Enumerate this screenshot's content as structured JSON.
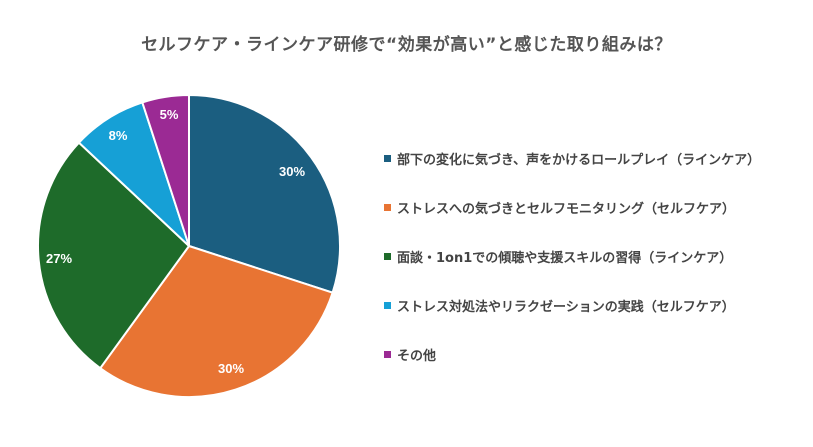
{
  "chart_data": {
    "type": "pie",
    "title": "セルフケア・ラインケア研修で“効果が高い”と感じた取り組みは？",
    "categories": [
      "部下の変化に気づき、声をかけるロールプレイ（ラインケア）",
      "ストレスへの気づきとセルフモニタリング（セルフケア）",
      "面談・1on1での傾聴や支援スキルの習得（ラインケア）",
      "ストレス対処法やリラクゼーションの実践（セルフケア）",
      "その他"
    ],
    "values": [
      30,
      30,
      27,
      8,
      5
    ],
    "labels": [
      "30%",
      "30%",
      "27%",
      "8%",
      "5%"
    ],
    "colors": [
      "#1b5e80",
      "#e87433",
      "#1e6b2a",
      "#16a0d6",
      "#9b2a94"
    ],
    "legend_position": "right",
    "start_angle": "12 o'clock, clockwise"
  },
  "title": "セルフケア・ラインケア研修で“効果が高い”と感じた取り組みは？",
  "legend": [
    {
      "label": "部下の変化に気づき、声をかけるロールプレイ（ラインケア）",
      "color": "#1b5e80"
    },
    {
      "label": "ストレスへの気づきとセルフモニタリング（セルフケア）",
      "color": "#e87433"
    },
    {
      "label": "面談・1on1での傾聴や支援スキルの習得（ラインケア）",
      "color": "#1e6b2a"
    },
    {
      "label": "ストレス対処法やリラクゼーションの実践（セルフケア）",
      "color": "#16a0d6"
    },
    {
      "label": "その他",
      "color": "#9b2a94"
    }
  ],
  "slice_labels": [
    "30%",
    "30%",
    "27%",
    "8%",
    "5%"
  ]
}
